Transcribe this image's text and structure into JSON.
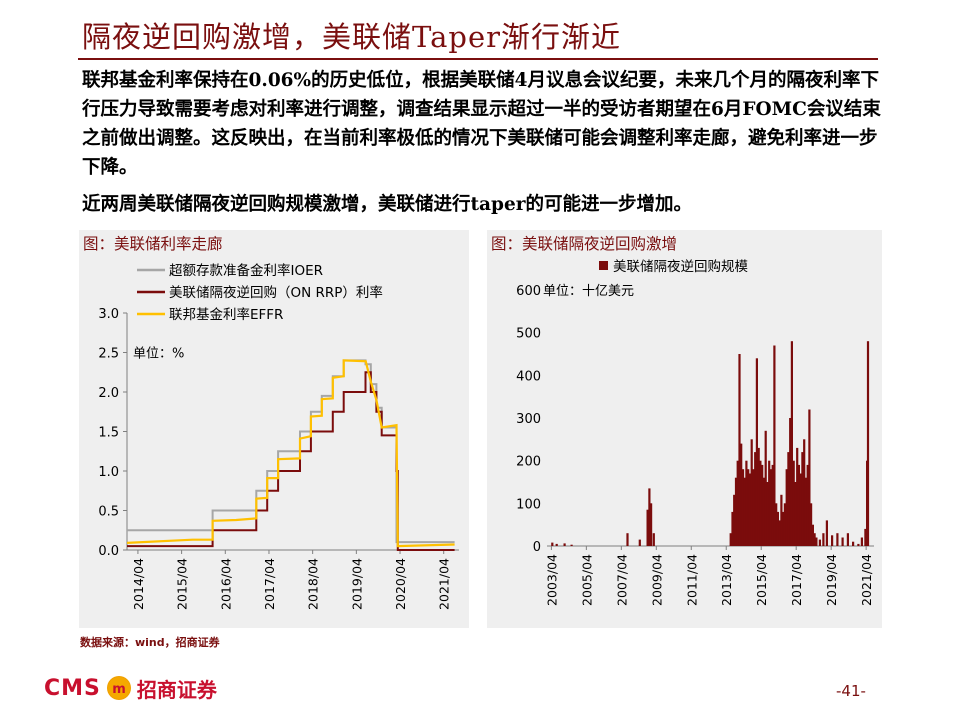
{
  "slide": {
    "title": "隔夜逆回购激增，美联储Taper渐行渐近",
    "paragraph1": "联邦基金利率保持在0.06%的历史低位，根据美联储4月议息会议纪要，未来几个月的隔夜利率下行压力导致需要考虑对利率进行调整，调查结果显示超过一半的受访者期望在6月FOMC会议结束之前做出调整。这反映出，在当前利率极低的情况下美联储可能会调整利率走廊，避免利率进一步下降。",
    "paragraph2": "近两周美联储隔夜逆回购规模激增，美联储进行taper的可能进一步增加。",
    "source": "数据来源：wind，招商证券",
    "page_number": "-41-",
    "logo_text": "CMS",
    "logo_name": "招商证券",
    "logo_mark_text": "m"
  },
  "chart_left": {
    "panel_title": "图：美联储利率走廊",
    "chart_data": {
      "type": "line",
      "unit_label": "单位：%",
      "ylim": [
        0,
        3.0
      ],
      "y_ticks": [
        "0.0",
        "0.5",
        "1.0",
        "1.5",
        "2.0",
        "2.5",
        "3.0"
      ],
      "x_ticks": [
        "2014/04",
        "2015/04",
        "2016/04",
        "2017/04",
        "2018/04",
        "2019/04",
        "2020/04",
        "2021/04"
      ],
      "legend": [
        "超额存款准备金利率IOER",
        "美联储隔夜逆回购（ON RRP）利率",
        "联邦基金利率EFFR"
      ],
      "series": [
        {
          "name": "超额存款准备金利率IOER",
          "color": "#a6a6a6",
          "points": [
            [
              2014.0,
              0.25
            ],
            [
              2015.96,
              0.25
            ],
            [
              2015.96,
              0.5
            ],
            [
              2016.96,
              0.5
            ],
            [
              2016.96,
              0.75
            ],
            [
              2017.21,
              0.75
            ],
            [
              2017.21,
              1.0
            ],
            [
              2017.46,
              1.0
            ],
            [
              2017.46,
              1.25
            ],
            [
              2017.96,
              1.25
            ],
            [
              2017.96,
              1.5
            ],
            [
              2018.21,
              1.5
            ],
            [
              2018.21,
              1.75
            ],
            [
              2018.46,
              1.75
            ],
            [
              2018.46,
              1.95
            ],
            [
              2018.71,
              1.95
            ],
            [
              2018.71,
              2.2
            ],
            [
              2018.96,
              2.2
            ],
            [
              2018.96,
              2.4
            ],
            [
              2019.46,
              2.4
            ],
            [
              2019.46,
              2.35
            ],
            [
              2019.58,
              2.35
            ],
            [
              2019.58,
              2.1
            ],
            [
              2019.71,
              2.1
            ],
            [
              2019.71,
              1.8
            ],
            [
              2019.83,
              1.8
            ],
            [
              2019.83,
              1.55
            ],
            [
              2020.17,
              1.55
            ],
            [
              2020.17,
              0.1
            ],
            [
              2021.5,
              0.1
            ]
          ]
        },
        {
          "name": "美联储隔夜逆回购（ON RRP）利率",
          "color": "#7b0c0c",
          "points": [
            [
              2014.0,
              0.05
            ],
            [
              2015.96,
              0.05
            ],
            [
              2015.96,
              0.25
            ],
            [
              2016.96,
              0.25
            ],
            [
              2016.96,
              0.5
            ],
            [
              2017.21,
              0.5
            ],
            [
              2017.21,
              0.75
            ],
            [
              2017.46,
              0.75
            ],
            [
              2017.46,
              1.0
            ],
            [
              2017.96,
              1.0
            ],
            [
              2017.96,
              1.25
            ],
            [
              2018.21,
              1.25
            ],
            [
              2018.21,
              1.5
            ],
            [
              2018.71,
              1.5
            ],
            [
              2018.71,
              1.75
            ],
            [
              2018.96,
              1.75
            ],
            [
              2018.96,
              2.0
            ],
            [
              2019.46,
              2.0
            ],
            [
              2019.46,
              2.25
            ],
            [
              2019.58,
              2.25
            ],
            [
              2019.58,
              2.0
            ],
            [
              2019.71,
              2.0
            ],
            [
              2019.71,
              1.75
            ],
            [
              2019.83,
              1.75
            ],
            [
              2019.83,
              1.45
            ],
            [
              2020.17,
              1.45
            ],
            [
              2020.17,
              1.0
            ],
            [
              2020.2,
              1.0
            ],
            [
              2020.2,
              0.0
            ],
            [
              2021.5,
              0.0
            ]
          ]
        },
        {
          "name": "联邦基金利率EFFR",
          "color": "#ffc000",
          "points": [
            [
              2014.0,
              0.09
            ],
            [
              2015.5,
              0.13
            ],
            [
              2015.96,
              0.13
            ],
            [
              2015.96,
              0.37
            ],
            [
              2016.5,
              0.38
            ],
            [
              2016.96,
              0.4
            ],
            [
              2016.96,
              0.65
            ],
            [
              2017.21,
              0.66
            ],
            [
              2017.21,
              0.91
            ],
            [
              2017.46,
              0.91
            ],
            [
              2017.46,
              1.15
            ],
            [
              2017.96,
              1.16
            ],
            [
              2017.96,
              1.41
            ],
            [
              2018.21,
              1.44
            ],
            [
              2018.21,
              1.69
            ],
            [
              2018.46,
              1.7
            ],
            [
              2018.46,
              1.91
            ],
            [
              2018.71,
              1.92
            ],
            [
              2018.71,
              2.18
            ],
            [
              2018.96,
              2.2
            ],
            [
              2018.96,
              2.4
            ],
            [
              2019.46,
              2.39
            ],
            [
              2019.46,
              2.4
            ],
            [
              2019.58,
              2.13
            ],
            [
              2019.71,
              1.9
            ],
            [
              2019.83,
              1.55
            ],
            [
              2020.17,
              1.58
            ],
            [
              2020.2,
              0.05
            ],
            [
              2021.5,
              0.07
            ]
          ]
        }
      ]
    }
  },
  "chart_right": {
    "panel_title": "图：美联储隔夜逆回购激增",
    "chart_data": {
      "type": "bar",
      "unit_label": "单位：十亿美元",
      "ylim": [
        0,
        600
      ],
      "y_ticks": [
        "0",
        "100",
        "200",
        "300",
        "400",
        "500",
        "600"
      ],
      "x_ticks": [
        "2003/04",
        "2005/04",
        "2007/04",
        "2009/04",
        "2011/04",
        "2013/04",
        "2015/04",
        "2017/04",
        "2019/04",
        "2021/04"
      ],
      "legend": [
        "美联储隔夜逆回购规模"
      ],
      "series": [
        {
          "name": "美联储隔夜逆回购规模",
          "color": "#7b0c0c",
          "points": [
            [
              2003.3,
              8
            ],
            [
              2003.55,
              5
            ],
            [
              2004.0,
              6
            ],
            [
              2004.4,
              3
            ],
            [
              2007.6,
              30
            ],
            [
              2008.3,
              15
            ],
            [
              2008.75,
              85
            ],
            [
              2008.85,
              135
            ],
            [
              2008.95,
              100
            ],
            [
              2009.1,
              30
            ],
            [
              2013.5,
              30
            ],
            [
              2013.6,
              80
            ],
            [
              2013.7,
              120
            ],
            [
              2013.8,
              160
            ],
            [
              2013.9,
              200
            ],
            [
              2014.0,
              450
            ],
            [
              2014.1,
              240
            ],
            [
              2014.2,
              180
            ],
            [
              2014.3,
              160
            ],
            [
              2014.4,
              200
            ],
            [
              2014.5,
              180
            ],
            [
              2014.6,
              170
            ],
            [
              2014.7,
              250
            ],
            [
              2014.8,
              180
            ],
            [
              2014.9,
              220
            ],
            [
              2015.0,
              440
            ],
            [
              2015.1,
              230
            ],
            [
              2015.2,
              200
            ],
            [
              2015.3,
              190
            ],
            [
              2015.4,
              160
            ],
            [
              2015.5,
              270
            ],
            [
              2015.6,
              150
            ],
            [
              2015.7,
              200
            ],
            [
              2015.8,
              180
            ],
            [
              2015.9,
              190
            ],
            [
              2016.0,
              470
            ],
            [
              2016.1,
              100
            ],
            [
              2016.2,
              80
            ],
            [
              2016.3,
              60
            ],
            [
              2016.4,
              120
            ],
            [
              2016.5,
              80
            ],
            [
              2016.6,
              100
            ],
            [
              2016.7,
              180
            ],
            [
              2016.8,
              220
            ],
            [
              2016.9,
              300
            ],
            [
              2017.0,
              480
            ],
            [
              2017.1,
              200
            ],
            [
              2017.2,
              150
            ],
            [
              2017.3,
              230
            ],
            [
              2017.4,
              190
            ],
            [
              2017.5,
              170
            ],
            [
              2017.6,
              220
            ],
            [
              2017.7,
              250
            ],
            [
              2017.8,
              160
            ],
            [
              2017.9,
              190
            ],
            [
              2018.0,
              320
            ],
            [
              2018.1,
              100
            ],
            [
              2018.2,
              50
            ],
            [
              2018.3,
              30
            ],
            [
              2018.4,
              20
            ],
            [
              2018.6,
              15
            ],
            [
              2018.8,
              30
            ],
            [
              2019.0,
              60
            ],
            [
              2019.3,
              25
            ],
            [
              2019.6,
              30
            ],
            [
              2019.9,
              20
            ],
            [
              2020.2,
              30
            ],
            [
              2020.5,
              10
            ],
            [
              2020.8,
              5
            ],
            [
              2021.0,
              20
            ],
            [
              2021.2,
              40
            ],
            [
              2021.3,
              200
            ],
            [
              2021.35,
              480
            ]
          ]
        }
      ]
    }
  }
}
